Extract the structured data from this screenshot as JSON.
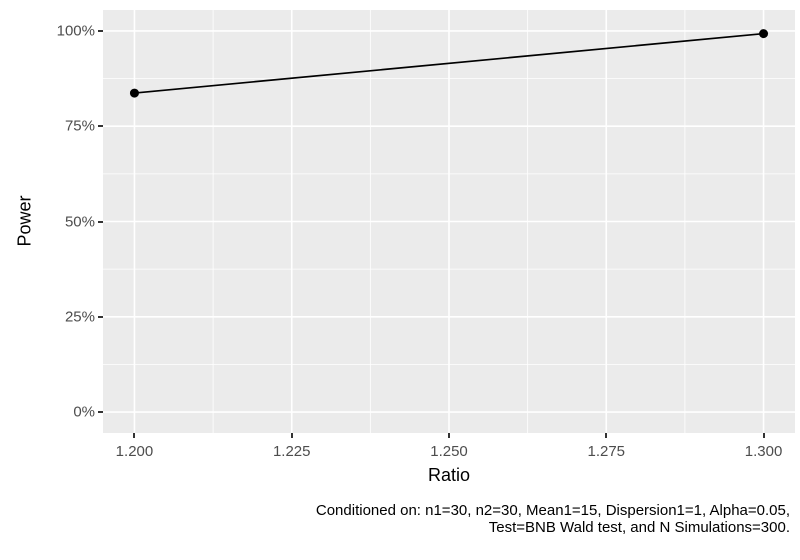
{
  "chart_data": {
    "type": "line",
    "title": "",
    "xlabel": "Ratio",
    "ylabel": "Power",
    "x_ticks": [
      1.2,
      1.225,
      1.25,
      1.275,
      1.3
    ],
    "x_tick_labels": [
      "1.200",
      "1.225",
      "1.250",
      "1.275",
      "1.300"
    ],
    "y_ticks": [
      0,
      25,
      50,
      75,
      100
    ],
    "y_tick_labels": [
      "0%",
      "25%",
      "50%",
      "75%",
      "100%"
    ],
    "x_minor_ticks": [
      1.2125,
      1.2375,
      1.2625,
      1.2875
    ],
    "y_minor_ticks": [
      12.5,
      37.5,
      62.5,
      87.5
    ],
    "xlim": [
      1.195,
      1.305
    ],
    "ylim": [
      -5.5,
      105.5
    ],
    "grid": "major+minor",
    "legend": "none",
    "series": [
      {
        "name": "Power",
        "x": [
          1.2,
          1.3
        ],
        "y": [
          83.7,
          99.3
        ]
      }
    ]
  },
  "caption": {
    "line1": "Conditioned on: n1=30, n2=30, Mean1=15, Dispersion1=1, Alpha=0.05,",
    "line2": "Test=BNB Wald test, and N Simulations=300."
  },
  "colors": {
    "panel_bg": "#EBEBEB",
    "grid_major": "#FFFFFF",
    "grid_minor": "#FFFFFF",
    "axis_text": "#4D4D4D",
    "tick_mark": "#333333",
    "axis_title": "#000000",
    "caption_text": "#000000",
    "line": "#000000",
    "point": "#000000",
    "plot_bg": "#FFFFFF"
  }
}
